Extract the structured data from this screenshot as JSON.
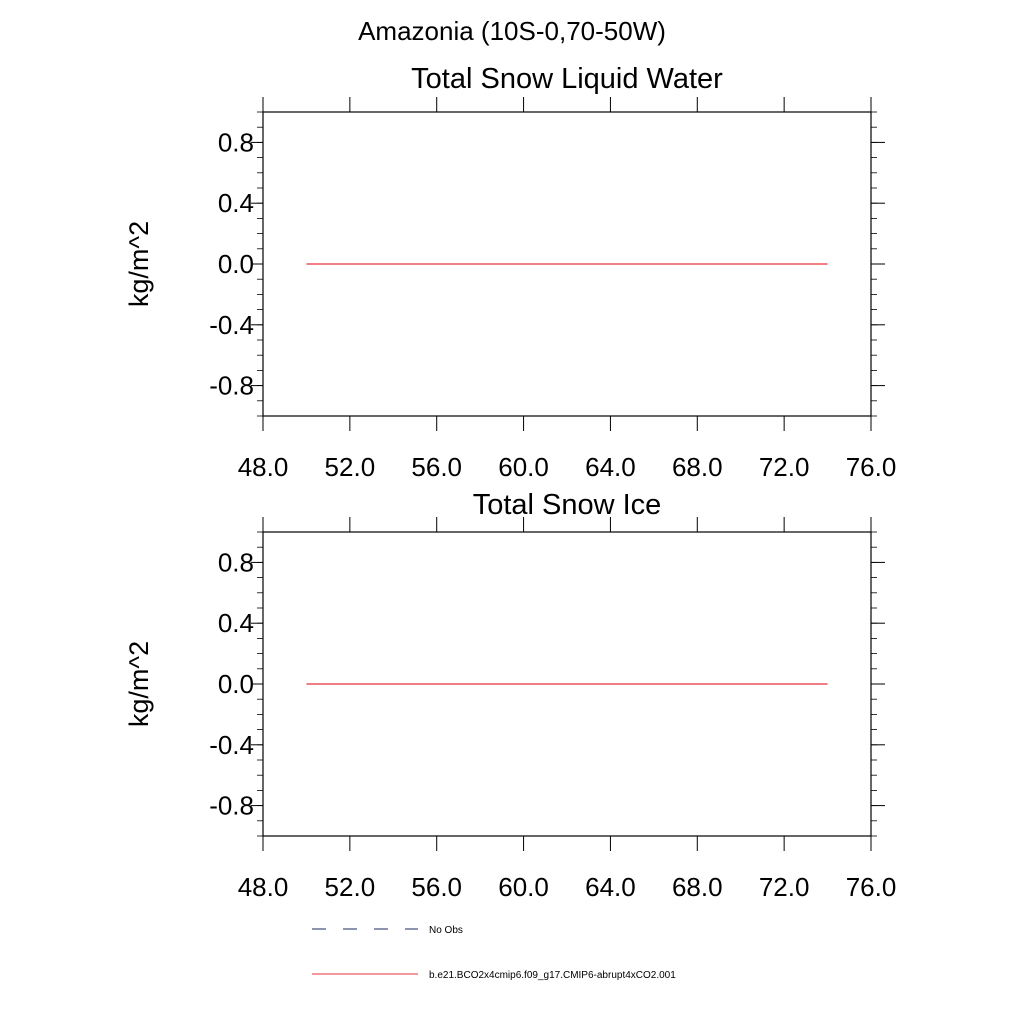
{
  "figure": {
    "title": "Amazonia (10S-0,70-50W)"
  },
  "chart_data": [
    {
      "type": "line",
      "title": "Total Snow Liquid Water",
      "xlabel": "",
      "ylabel": "kg/m^2",
      "xlim": [
        48,
        76
      ],
      "ylim": [
        -1.0,
        1.0
      ],
      "x_ticks": [
        "48.0",
        "52.0",
        "56.0",
        "60.0",
        "64.0",
        "68.0",
        "72.0",
        "76.0"
      ],
      "y_ticks": [
        "0.8",
        "0.4",
        "0.0",
        "-0.4",
        "-0.8"
      ],
      "series": [
        {
          "name": "b.e21.BCO2x4cmip6.f09_g17.CMIP6-abrupt4xCO2.001",
          "color": "#e8313a",
          "x": [
            50,
            74
          ],
          "y": [
            0.0,
            0.0
          ]
        }
      ]
    },
    {
      "type": "line",
      "title": "Total Snow Ice",
      "xlabel": "",
      "ylabel": "kg/m^2",
      "xlim": [
        48,
        76
      ],
      "ylim": [
        -1.0,
        1.0
      ],
      "x_ticks": [
        "48.0",
        "52.0",
        "56.0",
        "60.0",
        "64.0",
        "68.0",
        "72.0",
        "76.0"
      ],
      "y_ticks": [
        "0.8",
        "0.4",
        "0.0",
        "-0.4",
        "-0.8"
      ],
      "series": [
        {
          "name": "b.e21.BCO2x4cmip6.f09_g17.CMIP6-abrupt4xCO2.001",
          "color": "#e8313a",
          "x": [
            50,
            74
          ],
          "y": [
            0.0,
            0.0
          ]
        }
      ]
    }
  ],
  "legend": {
    "items": [
      {
        "label": "No Obs",
        "style": "dashed",
        "color": "#1f2a5c"
      },
      {
        "label": "b.e21.BCO2x4cmip6.f09_g17.CMIP6-abrupt4xCO2.001",
        "style": "solid",
        "color": "#e8313a"
      }
    ]
  }
}
